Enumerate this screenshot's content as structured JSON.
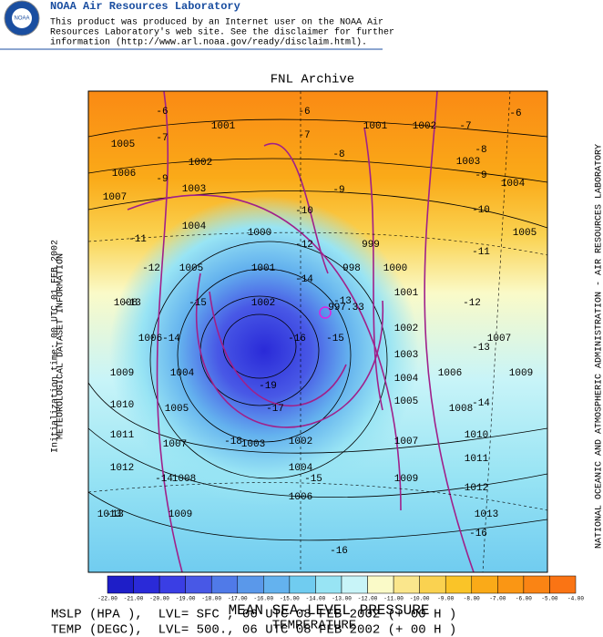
{
  "header": {
    "lab": "NOAA Air Resources Laboratory",
    "disclaimer": [
      "This product was produced by an Internet user on the NOAA Air",
      "Resources Laboratory's web site.  See the disclaimer for further",
      "information (http://www.arl.noaa.gov/ready/disclaim.html)."
    ],
    "logo": "NOAA"
  },
  "map": {
    "title": "FNL Archive",
    "left_labels": [
      "METEOROLOGICAL DATASET INFORMATION",
      "Initialization time: 00 UTC 01 FEB 2002"
    ],
    "right_label": "NATIONAL OCEANIC AND ATMOSPHERIC ADMINISTRATION - AIR RESOURCES LABORATORY",
    "center_label": "997.33",
    "pressure_labels": [
      "1001",
      "1001",
      "1002",
      "1005",
      "1002",
      "1003",
      "1006",
      "1003",
      "1004",
      "1007",
      "1004",
      "1000",
      "999",
      "1005",
      "1005",
      "1001",
      "998",
      "1000",
      "1001",
      "1008",
      "1002",
      "1002",
      "1006",
      "1007",
      "1003",
      "1004",
      "1004",
      "1006",
      "1009",
      "1009",
      "1005",
      "1008",
      "1010",
      "1005",
      "1011",
      "1007",
      "1003",
      "1002",
      "1007",
      "1010",
      "1004",
      "1011",
      "1012",
      "1008",
      "1009",
      "1012",
      "1006",
      "1013",
      "1009",
      "1013"
    ],
    "temperature_labels": [
      "-6",
      "-6",
      "-7",
      "-6",
      "-7",
      "-7",
      "-8",
      "-8",
      "-9",
      "-9",
      "-9",
      "-10",
      "-10",
      "-11",
      "-12",
      "-11",
      "-12",
      "-14",
      "-13",
      "-15",
      "-13",
      "-12",
      "-14",
      "-16",
      "-15",
      "-13",
      "-19",
      "-17",
      "-14",
      "-18",
      "-15",
      "-14",
      "-13",
      "-16",
      "-16"
    ]
  },
  "colorbar": {
    "labels": [
      "-22.00",
      "-21.00",
      "-20.00",
      "-19.00",
      "-18.00",
      "-17.00",
      "-16.00",
      "-15.00",
      "-14.00",
      "-13.00",
      "-12.00",
      "-11.00",
      "-10.00",
      "-9.00",
      "-8.00",
      "-7.00",
      "-6.00",
      "-5.00",
      "-4.00"
    ],
    "colors": [
      "#1e1ec8",
      "#2a2ad8",
      "#3a3ee4",
      "#4858e6",
      "#507ae8",
      "#5a98ea",
      "#64b2ee",
      "#70ccf0",
      "#98e4f4",
      "#c8f4f8",
      "#fafac8",
      "#fae68c",
      "#fad250",
      "#fac428",
      "#faaa18",
      "#fa9614",
      "#fa8414",
      "#fa7414"
    ]
  },
  "footer": {
    "title": "MEAN SEA-LEVEL PRESSURE",
    "subtitle": "TEMPERATURE",
    "lines": [
      "MSLP (HPA ),  LVL= SFC , 06 UTC 08 FEB 2002 (+ 00 H )",
      "TEMP (DEGC),  LVL= 500., 06 UTC 08 FEB 2002 (+ 00 H )"
    ]
  }
}
